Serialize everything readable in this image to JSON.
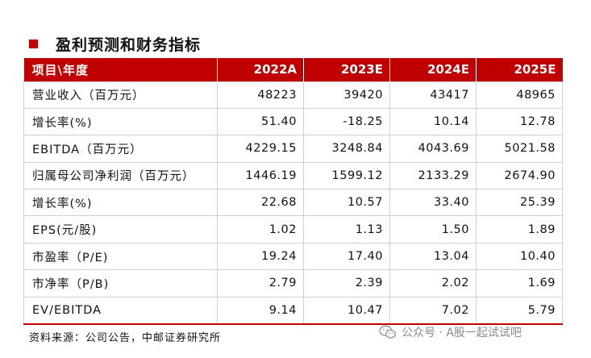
{
  "title": "盈利预测和财务指标",
  "table": {
    "header": [
      "项目\\年度",
      "2022A",
      "2023E",
      "2024E",
      "2025E"
    ],
    "rows": [
      {
        "label": "营业收入（百万元）",
        "values": [
          "48223",
          "39420",
          "43417",
          "48965"
        ]
      },
      {
        "label": "增长率(%)",
        "values": [
          "51.40",
          "-18.25",
          "10.14",
          "12.78"
        ]
      },
      {
        "label": "EBITDA（百万元）",
        "values": [
          "4229.15",
          "3248.84",
          "4043.69",
          "5021.58"
        ]
      },
      {
        "label": "归属母公司净利润（百万元）",
        "values": [
          "1446.19",
          "1599.12",
          "2133.29",
          "2674.90"
        ]
      },
      {
        "label": "增长率(%)",
        "values": [
          "22.68",
          "10.57",
          "33.40",
          "25.39"
        ]
      },
      {
        "label": "EPS(元/股)",
        "values": [
          "1.02",
          "1.13",
          "1.50",
          "1.89"
        ]
      },
      {
        "label": "市盈率（P/E)",
        "values": [
          "19.24",
          "17.40",
          "13.04",
          "10.40"
        ]
      },
      {
        "label": "市净率（P/B)",
        "values": [
          "2.79",
          "2.39",
          "2.02",
          "1.69"
        ]
      },
      {
        "label": "EV/EBITDA",
        "values": [
          "9.14",
          "10.47",
          "7.02",
          "5.79"
        ]
      }
    ]
  },
  "source": "资料来源：公司公告，中邮证券研究所",
  "watermark": {
    "text": "公众号 · A股一起试试吧",
    "icon": "wechat-icon"
  },
  "colors": {
    "accent": "#c00000",
    "border": "#cfcfcf"
  }
}
